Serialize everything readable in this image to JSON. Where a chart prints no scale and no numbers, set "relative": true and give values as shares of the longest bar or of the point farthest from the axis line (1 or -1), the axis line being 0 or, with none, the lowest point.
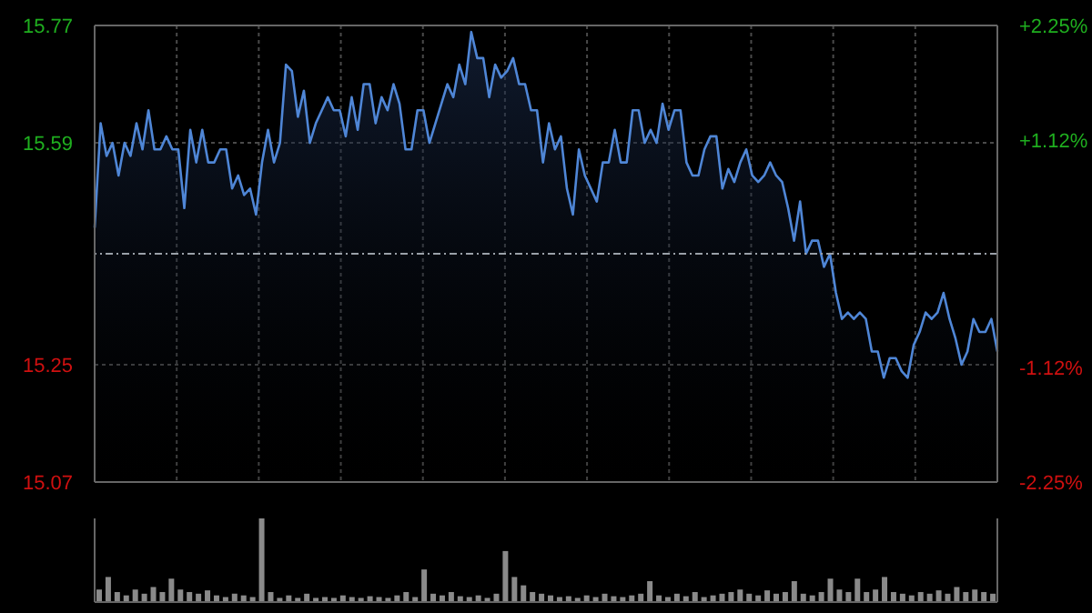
{
  "chart_data": [
    {
      "type": "area",
      "color": "#4f86d6",
      "ylim": [
        15.07,
        15.77
      ],
      "yticks": [
        15.77,
        15.59,
        15.25,
        15.07
      ],
      "y2lim": [
        -2.25,
        2.25
      ],
      "y2ticks": [
        {
          "value": 2.25,
          "label": "+2.25%"
        },
        {
          "value": 1.12,
          "label": "+1.12%"
        },
        {
          "value": -1.12,
          "label": "-1.12%"
        },
        {
          "value": -2.25,
          "label": "-2.25%"
        }
      ],
      "grid": true,
      "ref_lines": [
        {
          "axis": "y2",
          "value": 0
        }
      ],
      "categories": [
        null,
        null,
        null,
        null,
        null,
        null,
        null,
        null,
        null,
        null,
        null,
        null,
        null,
        null,
        null,
        null,
        null,
        null,
        null,
        null,
        null,
        null,
        null,
        null,
        null,
        null,
        null,
        null,
        null,
        null,
        null,
        null,
        null,
        null,
        null,
        null,
        null,
        null,
        null,
        null,
        null,
        null,
        null,
        null,
        null,
        null,
        null,
        null,
        null,
        null,
        null,
        null,
        null,
        null,
        null,
        null,
        null,
        null,
        null,
        null,
        null,
        null,
        null,
        null,
        null,
        null,
        null,
        null,
        null,
        null,
        null,
        null,
        null,
        null,
        null,
        null,
        null,
        null,
        null,
        null,
        null,
        null,
        null,
        null,
        null,
        null,
        null,
        null,
        null,
        null,
        null,
        null,
        null,
        null,
        null,
        null,
        null,
        null,
        null,
        null,
        null,
        null,
        null,
        null,
        null,
        null,
        null,
        null,
        null,
        null,
        null,
        null,
        null,
        null,
        null,
        null,
        null,
        null,
        null,
        null,
        null,
        null,
        null,
        null,
        null,
        null,
        null,
        null,
        null,
        null,
        null,
        null,
        null,
        null,
        null,
        null,
        null,
        null,
        null,
        null,
        null,
        null,
        null,
        null,
        null,
        null,
        null,
        null,
        null,
        null,
        null,
        null
      ],
      "values": [
        15.46,
        15.62,
        15.57,
        15.59,
        15.54,
        15.59,
        15.57,
        15.62,
        15.58,
        15.64,
        15.58,
        15.58,
        15.6,
        15.58,
        15.58,
        15.49,
        15.61,
        15.56,
        15.61,
        15.56,
        15.56,
        15.58,
        15.58,
        15.52,
        15.54,
        15.51,
        15.52,
        15.48,
        15.56,
        15.61,
        15.56,
        15.59,
        15.71,
        15.7,
        15.63,
        15.67,
        15.59,
        15.62,
        15.64,
        15.66,
        15.64,
        15.64,
        15.6,
        15.66,
        15.61,
        15.68,
        15.68,
        15.62,
        15.66,
        15.64,
        15.68,
        15.65,
        15.58,
        15.58,
        15.64,
        15.64,
        15.59,
        15.62,
        15.65,
        15.68,
        15.66,
        15.71,
        15.68,
        15.76,
        15.72,
        15.72,
        15.66,
        15.71,
        15.69,
        15.7,
        15.72,
        15.68,
        15.68,
        15.64,
        15.64,
        15.56,
        15.62,
        15.58,
        15.6,
        15.52,
        15.48,
        15.58,
        15.54,
        15.52,
        15.5,
        15.56,
        15.56,
        15.61,
        15.56,
        15.56,
        15.64,
        15.64,
        15.59,
        15.61,
        15.59,
        15.65,
        15.61,
        15.64,
        15.64,
        15.56,
        15.54,
        15.54,
        15.58,
        15.6,
        15.6,
        15.52,
        15.55,
        15.53,
        15.56,
        15.58,
        15.54,
        15.53,
        15.54,
        15.56,
        15.54,
        15.53,
        15.49,
        15.44,
        15.5,
        15.42,
        15.44,
        15.44,
        15.4,
        15.42,
        15.36,
        15.32,
        15.33,
        15.32,
        15.33,
        15.32,
        15.27,
        15.27,
        15.23,
        15.26,
        15.26,
        15.24,
        15.23,
        15.28,
        15.3,
        15.33,
        15.32,
        15.33,
        15.36,
        15.32,
        15.29,
        15.25,
        15.27,
        15.32,
        15.3,
        15.3,
        15.32,
        15.27
      ]
    },
    {
      "type": "bar",
      "relative": true,
      "color": "#8a8a8a",
      "categories": [
        null,
        null,
        null,
        null,
        null,
        null,
        null,
        null,
        null,
        null,
        null,
        null,
        null,
        null,
        null,
        null,
        null,
        null,
        null,
        null,
        null,
        null,
        null,
        null,
        null,
        null,
        null,
        null,
        null,
        null,
        null,
        null,
        null,
        null,
        null,
        null,
        null,
        null,
        null,
        null,
        null,
        null,
        null,
        null,
        null,
        null,
        null,
        null,
        null,
        null,
        null,
        null,
        null,
        null,
        null,
        null,
        null,
        null,
        null,
        null,
        null,
        null,
        null,
        null,
        null,
        null,
        null,
        null,
        null,
        null,
        null,
        null,
        null,
        null,
        null,
        null,
        null,
        null,
        null,
        null,
        null,
        null,
        null,
        null,
        null,
        null,
        null,
        null,
        null,
        null,
        null,
        null,
        null,
        null,
        null,
        null,
        null,
        null,
        null,
        null
      ],
      "values": [
        0.15,
        0.3,
        0.12,
        0.08,
        0.15,
        0.1,
        0.18,
        0.12,
        0.28,
        0.15,
        0.12,
        0.1,
        0.14,
        0.08,
        0.06,
        0.1,
        0.08,
        0.06,
        1,
        0.12,
        0.05,
        0.08,
        0.05,
        0.1,
        0.05,
        0.06,
        0.05,
        0.08,
        0.06,
        0.05,
        0.07,
        0.06,
        0.05,
        0.08,
        0.12,
        0.06,
        0.39,
        0.1,
        0.08,
        0.12,
        0.07,
        0.06,
        0.08,
        0.05,
        0.1,
        0.61,
        0.3,
        0.2,
        0.12,
        0.1,
        0.08,
        0.06,
        0.07,
        0.05,
        0.08,
        0.06,
        0.1,
        0.07,
        0.06,
        0.08,
        0.1,
        0.25,
        0.08,
        0.06,
        0.1,
        0.07,
        0.12,
        0.06,
        0.08,
        0.1,
        0.12,
        0.15,
        0.1,
        0.08,
        0.14,
        0.1,
        0.12,
        0.25,
        0.1,
        0.08,
        0.12,
        0.28,
        0.15,
        0.12,
        0.28,
        0.12,
        0.15,
        0.3,
        0.12,
        0.1,
        0.08,
        0.12,
        0.1,
        0.14,
        0.1,
        0.18,
        0.12,
        0.15,
        0.12,
        0.1
      ]
    }
  ]
}
